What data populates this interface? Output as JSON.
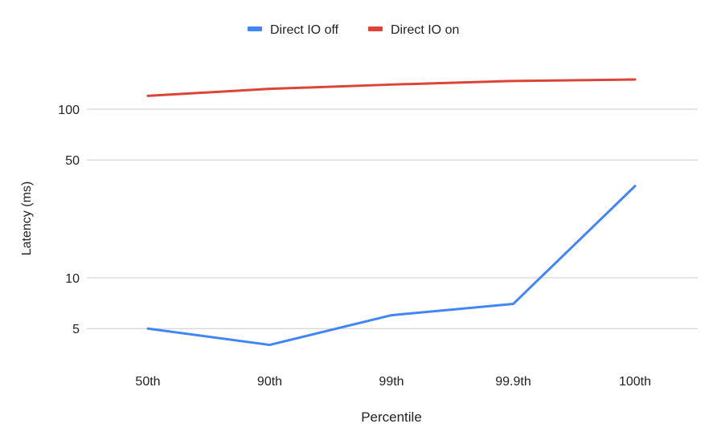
{
  "chart_data": {
    "type": "line",
    "categories": [
      "50th",
      "90th",
      "99th",
      "99.9th",
      "100th"
    ],
    "series": [
      {
        "name": "Direct IO off",
        "color": "#4285f4",
        "values": [
          5,
          4,
          6,
          7,
          35
        ]
      },
      {
        "name": "Direct IO on",
        "color": "#db4437",
        "values": [
          120,
          132,
          140,
          147,
          150
        ]
      }
    ],
    "xlabel": "Percentile",
    "ylabel": "Latency (ms)",
    "y_scale": "log",
    "y_ticks": [
      5,
      10,
      50,
      100
    ],
    "legend_position": "top-center",
    "grid": true
  }
}
